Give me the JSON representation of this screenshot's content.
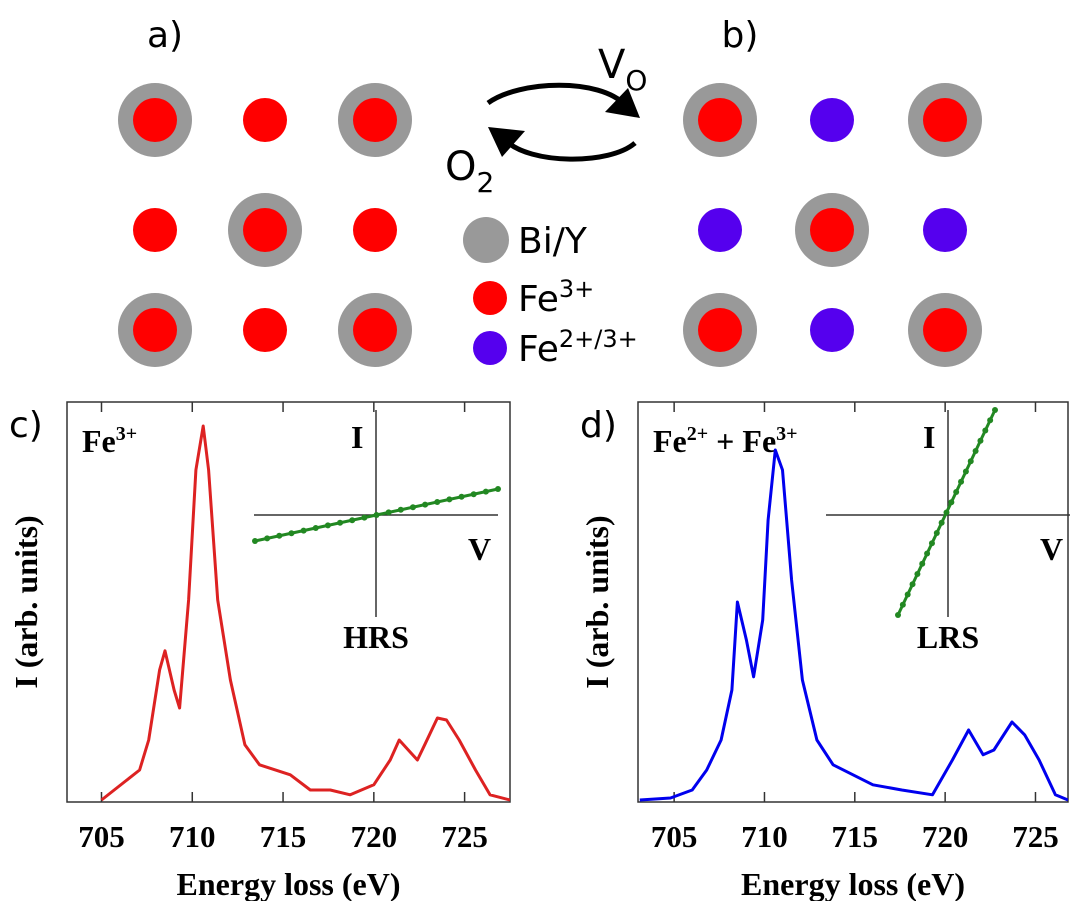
{
  "schematic": {
    "panel_a": "a)",
    "panel_b": "b)",
    "vacancy": {
      "base": "V",
      "sub": "O"
    },
    "oxygen": {
      "base": "O",
      "sub": "2"
    },
    "legend": [
      {
        "label": "Bi/Y",
        "color": "#999999"
      },
      {
        "base": "Fe",
        "sup": "3+",
        "color": "#ff0000"
      },
      {
        "base": "Fe",
        "sup": "2+/3+",
        "color": "#5500ee"
      }
    ]
  },
  "chart_data": [
    {
      "type": "line",
      "panel_label": "c)",
      "annotation": {
        "base": "Fe",
        "sup": "3+"
      },
      "x_label": "Energy loss (eV)",
      "y_label": "I (arb. units)",
      "inset": {
        "y_label": "I",
        "x_label": "V",
        "state": "HRS"
      },
      "color": "#dd2222",
      "xlim": [
        703.1,
        727.5
      ],
      "xticks": [
        705,
        710,
        715,
        720,
        725
      ],
      "ylim": [
        0,
        1
      ],
      "x": [
        705,
        707.1,
        707.6,
        708.2,
        708.5,
        709.0,
        709.3,
        709.8,
        710.2,
        710.6,
        710.9,
        711.4,
        712.1,
        712.9,
        713.7,
        715.4,
        716.5,
        717.6,
        718.7,
        720.0,
        720.9,
        721.4,
        722.0,
        722.4,
        722.8,
        723.5,
        724.0,
        724.7,
        725.6,
        726.4,
        727.5
      ],
      "values": [
        0.005,
        0.08,
        0.155,
        0.33,
        0.378,
        0.28,
        0.235,
        0.505,
        0.83,
        0.94,
        0.83,
        0.505,
        0.305,
        0.143,
        0.093,
        0.068,
        0.03,
        0.03,
        0.018,
        0.043,
        0.105,
        0.155,
        0.125,
        0.105,
        0.143,
        0.21,
        0.205,
        0.155,
        0.08,
        0.018,
        0.005
      ]
    },
    {
      "type": "line",
      "panel_label": "d)",
      "annotation": {
        "base1": "Fe",
        "sup1": "2+",
        "plus": " + ",
        "base2": "Fe",
        "sup2": "3+"
      },
      "x_label": "Energy loss (eV)",
      "y_label": "I (arb. units)",
      "inset": {
        "y_label": "I",
        "x_label": "V",
        "state": "LRS"
      },
      "color": "#0000ee",
      "xlim": [
        703.0,
        726.8
      ],
      "xticks": [
        705,
        710,
        715,
        720,
        725
      ],
      "ylim": [
        0,
        1
      ],
      "x": [
        703.1,
        704.8,
        706.0,
        706.8,
        707.6,
        708.2,
        708.5,
        709.0,
        709.4,
        709.9,
        710.2,
        710.6,
        711.0,
        711.5,
        712.1,
        712.9,
        713.8,
        714.9,
        716.0,
        717.6,
        719.3,
        720.4,
        721.3,
        722.1,
        722.7,
        723.7,
        724.4,
        725.2,
        726.1,
        726.8
      ],
      "values": [
        0.005,
        0.01,
        0.03,
        0.08,
        0.155,
        0.28,
        0.5,
        0.405,
        0.313,
        0.455,
        0.705,
        0.88,
        0.83,
        0.555,
        0.305,
        0.155,
        0.093,
        0.068,
        0.043,
        0.03,
        0.018,
        0.105,
        0.18,
        0.118,
        0.13,
        0.2,
        0.168,
        0.105,
        0.018,
        0.005
      ]
    }
  ]
}
